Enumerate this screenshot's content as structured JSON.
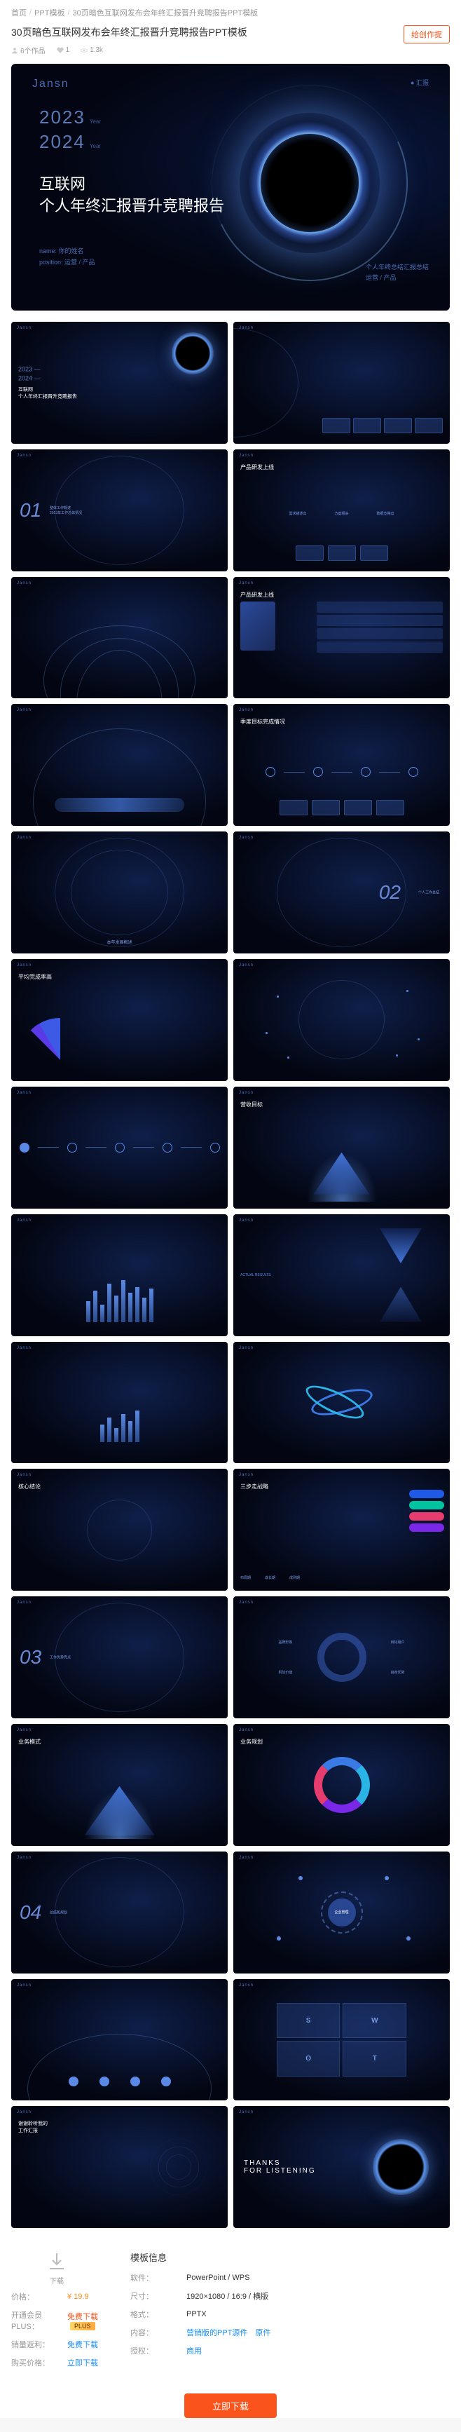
{
  "breadcrumb": {
    "home": "首页",
    "cat": "PPT模板",
    "title": "30页暗色互联网发布会年终汇报晋升竞聘报告PPT模板"
  },
  "header": {
    "title": "30页暗色互联网发布会年终汇报晋升竞聘报告PPT模板",
    "meta": {
      "author_label": "6个作品",
      "likes": "1",
      "views": "1.3k"
    },
    "promo_btn": "给创作提"
  },
  "hero": {
    "brand": "Jansn",
    "corner": "汇报",
    "year1": "2023",
    "year1_sub": "Year",
    "year2": "2024",
    "year2_sub": "Year",
    "title_l1": "互联网",
    "title_l2": "个人年终汇报晋升竞聘报告",
    "meta_l1": "name:   你的姓名",
    "meta_l2": "position:   运营 / 产品",
    "right_l1": "个人年终总结汇报总结",
    "right_l2": "运营 / 产品"
  },
  "thumbs": {
    "brand": "Jansn",
    "corner": "汇报",
    "t1_cover": "互联网\n个人年终汇报晋升竞聘报告",
    "t3_num": "01",
    "t3_sub": "整体工作概述\n2023年工作总体情况",
    "t4_title": "产品研发上线",
    "t4_b1": "需求描述出",
    "t4_b2": "方案相关",
    "t4_b3": "数据支撑出",
    "t6_title": "产品研发上线",
    "t8_title": "季度目标完成情况",
    "t9_text": "本年发展概述",
    "t10_num": "02",
    "t10_sub": "个人工作总结",
    "t11_title": "平均完成率高",
    "t13_title": "营收目标",
    "t16_l1": "ACTUAL RESULTS",
    "t16_l2": "平均完成率高",
    "t19_title": "核心结论",
    "t20_title": "三步走战略",
    "t20_p1": "布局期",
    "t20_p2": "成长期",
    "t20_p3": "成熟期",
    "t21_num": "03",
    "t21_sub": "工作优势亮点",
    "t22_c1": "品牌形象",
    "t22_c2": "目标用户",
    "t22_c3": "附加价值",
    "t22_c4": "自身优势",
    "t23_title": "业务模式",
    "t24_title": "业务规划",
    "t25_num": "04",
    "t25_sub": "总结和规划",
    "t26_center": "企业管理",
    "t28_letters": [
      "S",
      "W",
      "O",
      "T"
    ],
    "t29_title": "谢谢聆听我的\n工作汇报",
    "t30_thanks": "THANKS\nFOR LISTENING"
  },
  "colors": {
    "bg_dark": "#030612",
    "bg_mid": "#0f1f4a",
    "accent": "#5a8ae5",
    "accent_dim": "#4a6db5",
    "glow": "#6ab0ff",
    "orange": "#fa541c",
    "pill1": "#1e5ae6",
    "pill2": "#00c4a0",
    "pill3": "#e63c6e",
    "pill4": "#7828e6"
  },
  "info": {
    "title": "模板信息",
    "dl_icon_label": "下载",
    "rows": [
      {
        "label": "价格：",
        "value": "¥ 19.9",
        "cls": "price"
      },
      {
        "label": "开通会员PLUS：",
        "value": "免费下载",
        "cls": "free-link",
        "badge": "PLUS"
      },
      {
        "label": "销量返利：",
        "value": "免费下载",
        "cls": "link"
      },
      {
        "label": "购买价格：",
        "value": "立即下载",
        "cls": "link"
      }
    ],
    "rows2": [
      {
        "label": "软件：",
        "value": "PowerPoint / WPS"
      },
      {
        "label": "尺寸：",
        "value": "1920×1080 / 16:9 / 横版"
      },
      {
        "label": "格式：",
        "value": "PPTX"
      },
      {
        "label": "内容：",
        "value": "",
        "links": [
          "营销版的PPT源件",
          "原件"
        ]
      },
      {
        "label": "授权：",
        "value": "",
        "links": [
          "商用"
        ]
      }
    ],
    "dl_btn": "立即下载"
  },
  "chart_data": {
    "bars": [
      30,
      45,
      25,
      55,
      38,
      60,
      42,
      50,
      35,
      48
    ],
    "fan_colors": [
      "#7828e6",
      "#5a3ae6",
      "#3c5ae6",
      "#2878e6",
      "#1e96e6",
      "#14b4e6"
    ]
  }
}
